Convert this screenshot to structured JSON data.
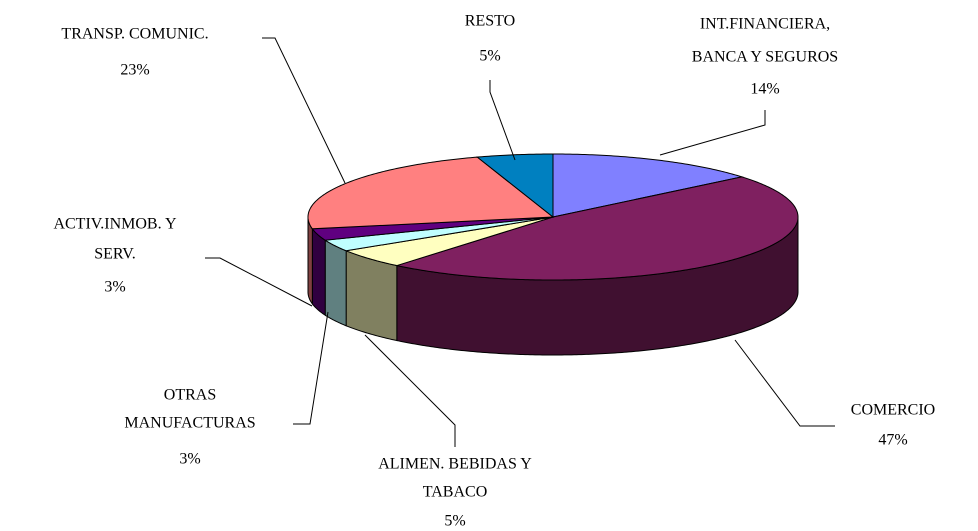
{
  "chart_data": {
    "type": "pie3d",
    "categories": [
      [
        "INT.FINANCIERA,",
        "BANCA Y SEGUROS"
      ],
      [
        "COMERCIO"
      ],
      [
        "ALIMEN. BEBIDAS Y",
        "TABACO"
      ],
      [
        "OTRAS",
        "MANUFACTURAS"
      ],
      [
        "ACTIV.INMOB. Y",
        "SERV."
      ],
      [
        "TRANSP. COMUNIC."
      ],
      [
        "RESTO"
      ]
    ],
    "values": [
      14,
      47,
      5,
      3,
      3,
      23,
      5
    ],
    "value_labels": [
      "14%",
      "47%",
      "5%",
      "3%",
      "3%",
      "23%",
      "5%"
    ],
    "colors": [
      "#8080ff",
      "#7f2060",
      "#ffffc0",
      "#c0ffff",
      "#600080",
      "#ff8080",
      "#0080c0"
    ]
  }
}
